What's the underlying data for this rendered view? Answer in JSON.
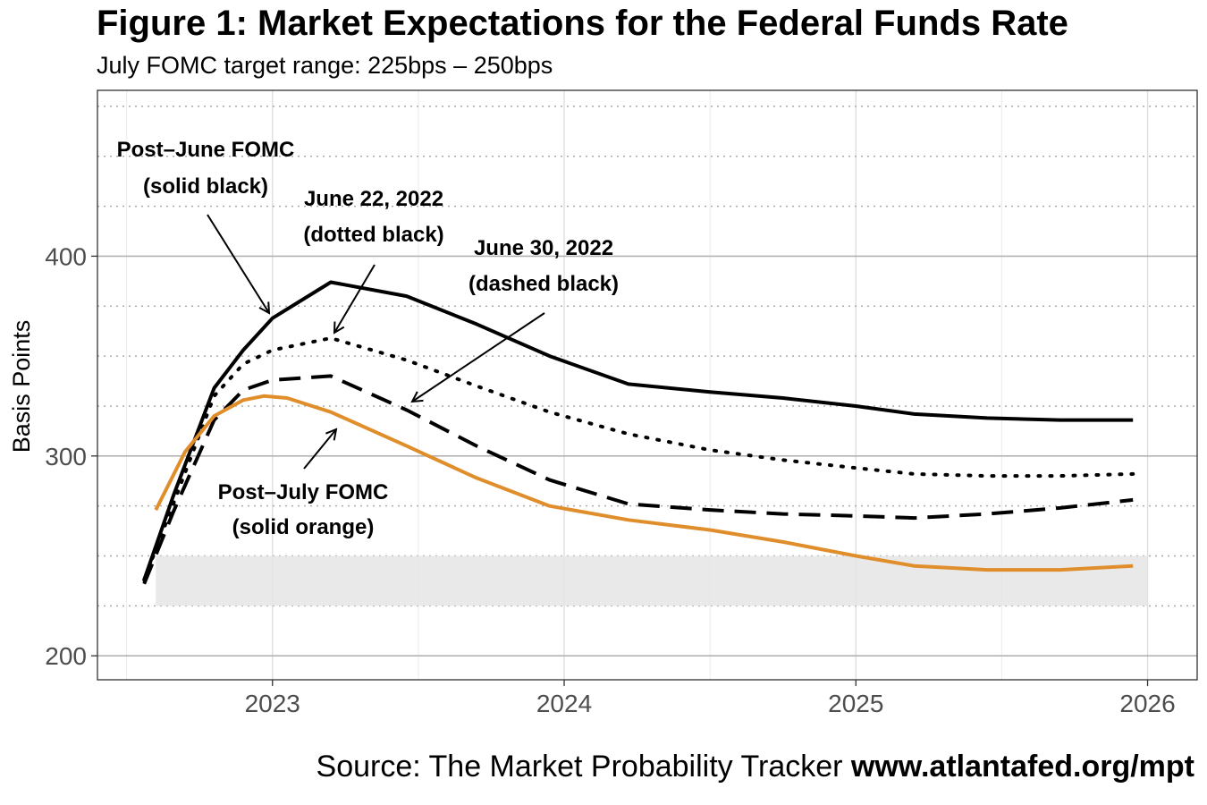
{
  "header": {
    "title": "Figure 1: Market Expectations for the Federal Funds Rate",
    "subtitle": "July FOMC target range: 225bps – 250bps"
  },
  "footer": {
    "source_prefix": "Source: The Market Probability Tracker ",
    "source_url": "www.atlantafed.org/mpt"
  },
  "chart_data": {
    "type": "line",
    "ylabel": "Basis Points",
    "xlabel": "",
    "x_ticks": [
      "2023",
      "2024",
      "2025",
      "2026"
    ],
    "y_ticks": [
      200,
      300,
      400
    ],
    "xlim": [
      2022.4,
      2026.17
    ],
    "ylim": [
      188,
      483
    ],
    "grid": true,
    "target_range": {
      "low": 225,
      "high": 250,
      "color": "#e5e5e5"
    },
    "series": [
      {
        "style": "solid",
        "color": "#000000",
        "x": [
          2022.56,
          2022.66,
          2022.8,
          2022.9,
          2023.0,
          2023.2,
          2023.46,
          2023.7,
          2023.95,
          2024.22,
          2024.5,
          2024.75,
          2025.0,
          2025.2,
          2025.45,
          2025.7,
          2025.95
        ],
        "y": [
          238,
          280,
          334,
          353,
          369,
          387,
          380,
          366,
          350,
          336,
          332,
          329,
          325,
          321,
          319,
          318,
          318
        ]
      },
      {
        "style": "dotted",
        "color": "#000000",
        "x": [
          2022.56,
          2022.66,
          2022.8,
          2022.9,
          2023.0,
          2023.2,
          2023.46,
          2023.7,
          2023.95,
          2024.22,
          2024.5,
          2024.75,
          2025.0,
          2025.2,
          2025.45,
          2025.7,
          2025.95
        ],
        "y": [
          238,
          276,
          330,
          346,
          353,
          359,
          348,
          335,
          322,
          311,
          303,
          298,
          294,
          291,
          290,
          290,
          291
        ]
      },
      {
        "style": "dashed",
        "color": "#000000",
        "x": [
          2022.56,
          2022.66,
          2022.8,
          2022.9,
          2023.0,
          2023.2,
          2023.46,
          2023.7,
          2023.95,
          2024.22,
          2024.5,
          2024.75,
          2025.0,
          2025.2,
          2025.45,
          2025.7,
          2025.95
        ],
        "y": [
          236,
          272,
          318,
          333,
          338,
          340,
          323,
          305,
          288,
          276,
          273,
          271,
          270,
          269,
          271,
          274,
          278
        ]
      },
      {
        "style": "solid",
        "color": "#e08e2b",
        "x": [
          2022.6,
          2022.7,
          2022.8,
          2022.9,
          2022.97,
          2023.05,
          2023.2,
          2023.46,
          2023.7,
          2023.95,
          2024.22,
          2024.5,
          2024.75,
          2025.0,
          2025.2,
          2025.45,
          2025.7,
          2025.95
        ],
        "y": [
          273,
          302,
          320,
          328,
          330,
          329,
          322,
          305,
          289,
          275,
          268,
          263,
          257,
          250,
          245,
          243,
          243,
          245
        ]
      }
    ],
    "annotations": [
      {
        "line1": "Post–June FOMC",
        "line2": "(solid black)"
      },
      {
        "line1": "June 22, 2022",
        "line2": "(dotted black)"
      },
      {
        "line1": "June 30, 2022",
        "line2": "(dashed black)"
      },
      {
        "line1": "Post–July FOMC",
        "line2": "(solid orange)"
      }
    ]
  }
}
